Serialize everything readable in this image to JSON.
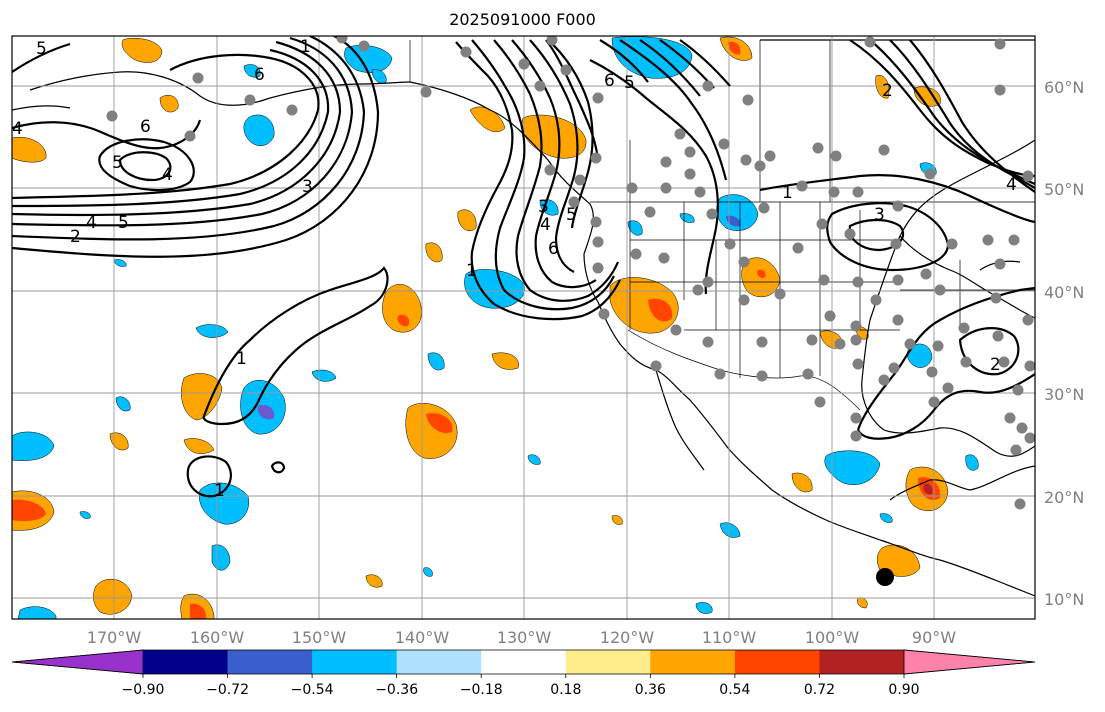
{
  "title": "2025091000 F000",
  "map": {
    "latitude_labels": [
      "60°N",
      "50°N",
      "40°N",
      "30°N",
      "20°N",
      "10°N"
    ],
    "longitude_labels": [
      "170°W",
      "160°W",
      "150°W",
      "140°W",
      "130°W",
      "120°W",
      "110°W",
      "100°W",
      "90°W"
    ],
    "contour_labels": [
      "1",
      "2",
      "3",
      "4",
      "5",
      "6"
    ],
    "shading_description": "anomaly field, blue negative, orange/red positive",
    "marker_colors": {
      "station_dot": "#808080",
      "storm_marker": "#000000"
    }
  },
  "colorbar": {
    "tick_labels": [
      "−0.90",
      "−0.72",
      "−0.54",
      "−0.36",
      "−0.18",
      "0.18",
      "0.36",
      "0.54",
      "0.72",
      "0.90"
    ],
    "colors": [
      "#9932cc",
      "#00008b",
      "#3a5fcd",
      "#00bfff",
      "#b0e2ff",
      "#ffffff",
      "#ffec8b",
      "#ffa500",
      "#ff4500",
      "#b22222",
      "#ff82ab"
    ]
  }
}
